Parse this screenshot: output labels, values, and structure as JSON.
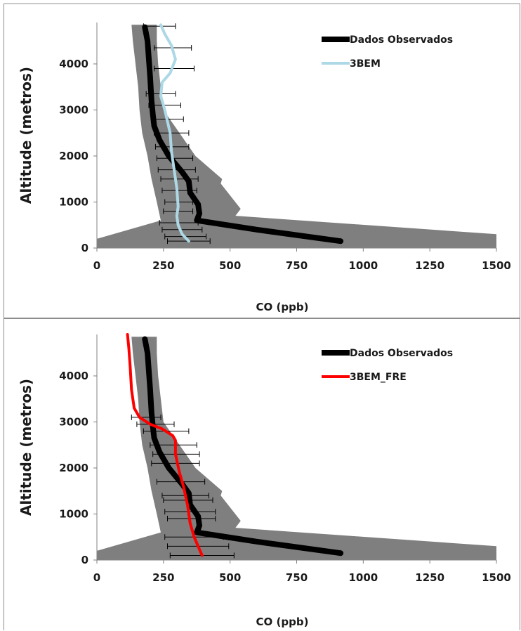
{
  "chart_data": [
    {
      "type": "line",
      "xlabel": "CO (ppb)",
      "ylabel": "Altitude (metros)",
      "xlim": [
        0,
        1500
      ],
      "ylim": [
        0,
        4900
      ],
      "x_ticks": [
        "0",
        "250",
        "500",
        "750",
        "1000",
        "1250",
        "1500"
      ],
      "y_ticks": [
        "0",
        "1000",
        "2000",
        "3000",
        "4000"
      ],
      "legend": "top-right",
      "colors": {
        "band": "#7f7f7f",
        "observed": "#000000",
        "model": "#add8e6",
        "errorbar": "#000000"
      },
      "band": {
        "name": "",
        "lower": [
          [
            0,
            0
          ],
          [
            0,
            200
          ],
          [
            240,
            600
          ],
          [
            225,
            1000
          ],
          [
            205,
            1500
          ],
          [
            190,
            2000
          ],
          [
            170,
            2500
          ],
          [
            160,
            3000
          ],
          [
            155,
            3500
          ],
          [
            145,
            4000
          ],
          [
            135,
            4500
          ],
          [
            130,
            4850
          ]
        ],
        "upper": [
          [
            1500,
            0
          ],
          [
            1500,
            300
          ],
          [
            520,
            700
          ],
          [
            540,
            850
          ],
          [
            465,
            1400
          ],
          [
            470,
            1500
          ],
          [
            370,
            2000
          ],
          [
            310,
            2500
          ],
          [
            250,
            3000
          ],
          [
            240,
            3500
          ],
          [
            230,
            4000
          ],
          [
            225,
            4500
          ],
          [
            225,
            4850
          ]
        ]
      },
      "series": [
        {
          "name": "Dados Observados",
          "points": [
            [
              915,
              150
            ],
            [
              600,
              400
            ],
            [
              375,
              600
            ],
            [
              385,
              750
            ],
            [
              380,
              950
            ],
            [
              350,
              1200
            ],
            [
              345,
              1450
            ],
            [
              320,
              1650
            ],
            [
              270,
              2000
            ],
            [
              235,
              2350
            ],
            [
              215,
              2650
            ],
            [
              210,
              2900
            ],
            [
              205,
              3200
            ],
            [
              200,
              3700
            ],
            [
              195,
              4100
            ],
            [
              190,
              4500
            ],
            [
              180,
              4800
            ]
          ]
        },
        {
          "name": "3BEM",
          "points": [
            [
              345,
              150
            ],
            [
              320,
              300
            ],
            [
              305,
              500
            ],
            [
              300,
              700
            ],
            [
              305,
              900
            ],
            [
              300,
              1300
            ],
            [
              290,
              1700
            ],
            [
              280,
              2100
            ],
            [
              275,
              2500
            ],
            [
              255,
              3000
            ],
            [
              240,
              3300
            ],
            [
              245,
              3600
            ],
            [
              275,
              3800
            ],
            [
              295,
              4100
            ],
            [
              280,
              4400
            ],
            [
              255,
              4650
            ],
            [
              240,
              4850
            ]
          ],
          "errorbars": [
            {
              "y": 150,
              "low": 265,
              "high": 425
            },
            {
              "y": 250,
              "low": 255,
              "high": 410
            },
            {
              "y": 400,
              "low": 245,
              "high": 395
            },
            {
              "y": 550,
              "low": 235,
              "high": 380
            },
            {
              "y": 800,
              "low": 250,
              "high": 360
            },
            {
              "y": 1000,
              "low": 255,
              "high": 360
            },
            {
              "y": 1250,
              "low": 245,
              "high": 375
            },
            {
              "y": 1500,
              "low": 240,
              "high": 380
            },
            {
              "y": 1700,
              "low": 230,
              "high": 370
            },
            {
              "y": 1950,
              "low": 225,
              "high": 360
            },
            {
              "y": 2200,
              "low": 220,
              "high": 345
            },
            {
              "y": 2500,
              "low": 215,
              "high": 345
            },
            {
              "y": 2800,
              "low": 205,
              "high": 325
            },
            {
              "y": 3100,
              "low": 195,
              "high": 315
            },
            {
              "y": 3350,
              "low": 185,
              "high": 295
            },
            {
              "y": 3900,
              "low": 215,
              "high": 365
            },
            {
              "y": 4350,
              "low": 215,
              "high": 355
            },
            {
              "y": 4820,
              "low": 175,
              "high": 295
            }
          ]
        }
      ]
    },
    {
      "type": "line",
      "xlabel": "CO (ppb)",
      "ylabel": "Altitude (metros)",
      "xlim": [
        0,
        1500
      ],
      "ylim": [
        0,
        4900
      ],
      "x_ticks": [
        "0",
        "250",
        "500",
        "750",
        "1000",
        "1250",
        "1500"
      ],
      "y_ticks": [
        "0",
        "1000",
        "2000",
        "3000",
        "4000"
      ],
      "legend": "top-right",
      "colors": {
        "band": "#7f7f7f",
        "observed": "#000000",
        "model": "#ff0000",
        "errorbar": "#000000"
      },
      "band": {
        "name": "",
        "lower": [
          [
            0,
            0
          ],
          [
            0,
            200
          ],
          [
            240,
            600
          ],
          [
            225,
            1000
          ],
          [
            205,
            1500
          ],
          [
            190,
            2000
          ],
          [
            170,
            2500
          ],
          [
            160,
            3000
          ],
          [
            155,
            3500
          ],
          [
            145,
            4000
          ],
          [
            135,
            4500
          ],
          [
            130,
            4850
          ]
        ],
        "upper": [
          [
            1500,
            0
          ],
          [
            1500,
            300
          ],
          [
            520,
            700
          ],
          [
            540,
            850
          ],
          [
            465,
            1400
          ],
          [
            470,
            1500
          ],
          [
            370,
            2000
          ],
          [
            310,
            2500
          ],
          [
            250,
            3000
          ],
          [
            240,
            3500
          ],
          [
            230,
            4000
          ],
          [
            225,
            4500
          ],
          [
            225,
            4850
          ]
        ]
      },
      "series": [
        {
          "name": "Dados Observados",
          "points": [
            [
              915,
              150
            ],
            [
              600,
              400
            ],
            [
              375,
              600
            ],
            [
              385,
              750
            ],
            [
              380,
              950
            ],
            [
              350,
              1200
            ],
            [
              345,
              1450
            ],
            [
              320,
              1650
            ],
            [
              270,
              2000
            ],
            [
              235,
              2350
            ],
            [
              215,
              2650
            ],
            [
              210,
              2900
            ],
            [
              205,
              3200
            ],
            [
              200,
              3700
            ],
            [
              195,
              4100
            ],
            [
              190,
              4500
            ],
            [
              180,
              4800
            ]
          ]
        },
        {
          "name": "3BEM_FRE",
          "points": [
            [
              395,
              100
            ],
            [
              380,
              300
            ],
            [
              365,
              500
            ],
            [
              350,
              800
            ],
            [
              340,
              1200
            ],
            [
              325,
              1600
            ],
            [
              310,
              1900
            ],
            [
              295,
              2300
            ],
            [
              295,
              2600
            ],
            [
              285,
              2700
            ],
            [
              245,
              2850
            ],
            [
              200,
              2950
            ],
            [
              160,
              3100
            ],
            [
              140,
              3300
            ],
            [
              130,
              3700
            ],
            [
              125,
              4200
            ],
            [
              120,
              4600
            ],
            [
              115,
              4900
            ]
          ],
          "errorbars": [
            {
              "y": 100,
              "low": 275,
              "high": 515
            },
            {
              "y": 300,
              "low": 265,
              "high": 495
            },
            {
              "y": 500,
              "low": 255,
              "high": 475
            },
            {
              "y": 900,
              "low": 265,
              "high": 445
            },
            {
              "y": 1050,
              "low": 255,
              "high": 445
            },
            {
              "y": 1300,
              "low": 250,
              "high": 435
            },
            {
              "y": 1400,
              "low": 245,
              "high": 420
            },
            {
              "y": 1700,
              "low": 225,
              "high": 405
            },
            {
              "y": 2100,
              "low": 205,
              "high": 385
            },
            {
              "y": 2300,
              "low": 210,
              "high": 385
            },
            {
              "y": 2500,
              "low": 200,
              "high": 375
            },
            {
              "y": 2800,
              "low": 175,
              "high": 345
            },
            {
              "y": 2950,
              "low": 150,
              "high": 290
            },
            {
              "y": 3100,
              "low": 130,
              "high": 240
            }
          ]
        }
      ]
    }
  ]
}
